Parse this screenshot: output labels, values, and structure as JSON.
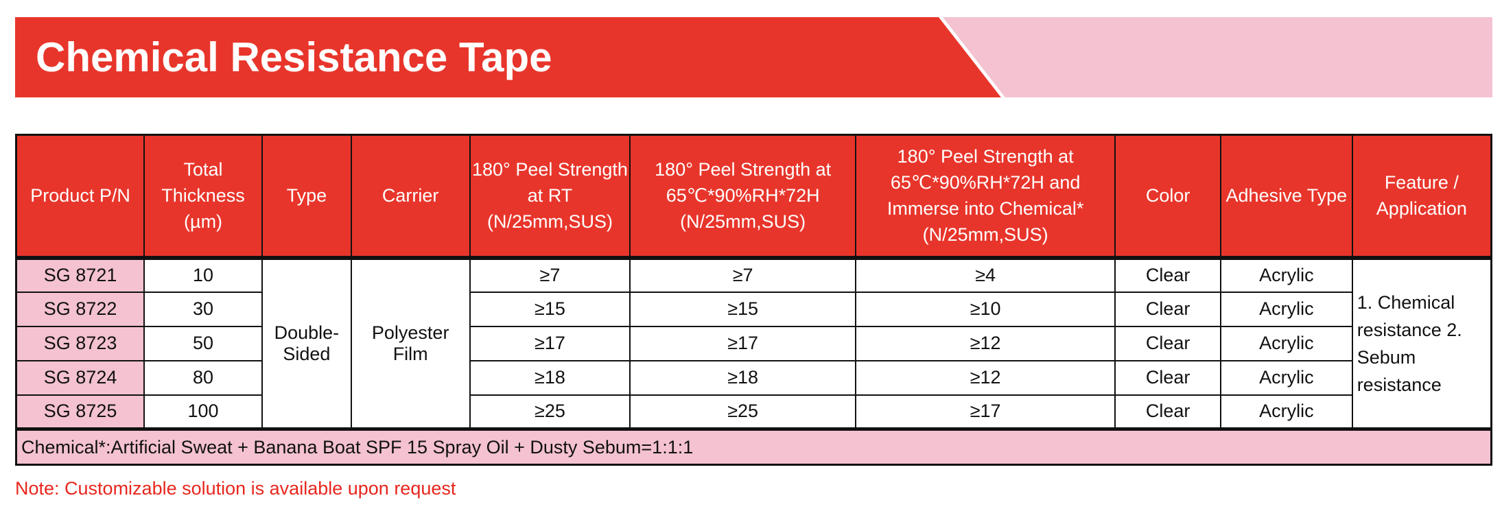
{
  "title": "Chemical Resistance Tape",
  "colors": {
    "red": "#e8352b",
    "pink": "#f4c2d0"
  },
  "headers": [
    "Product P/N",
    "Total Thickness (µm)",
    "Type",
    "Carrier",
    "180° Peel Strength at RT (N/25mm,SUS)",
    "180° Peel Strength at 65℃*90%RH*72H (N/25mm,SUS)",
    "180° Peel Strength at 65℃*90%RH*72H and Immerse into Chemical* (N/25mm,SUS)",
    "Color",
    "Adhesive Type",
    "Feature / Application"
  ],
  "type": "Double-Sided",
  "carrier": "Polyester Film",
  "feature": "1. Chemical resistance 2. Sebum resistance",
  "rows": [
    {
      "pn": "SG 8721",
      "thickness": "10",
      "peel_rt": "≥7",
      "peel_65": "≥7",
      "peel_chem": "≥4",
      "color": "Clear",
      "adhesive": "Acrylic"
    },
    {
      "pn": "SG 8722",
      "thickness": "30",
      "peel_rt": "≥15",
      "peel_65": "≥15",
      "peel_chem": "≥10",
      "color": "Clear",
      "adhesive": "Acrylic"
    },
    {
      "pn": "SG 8723",
      "thickness": "50",
      "peel_rt": "≥17",
      "peel_65": "≥17",
      "peel_chem": "≥12",
      "color": "Clear",
      "adhesive": "Acrylic"
    },
    {
      "pn": "SG 8724",
      "thickness": "80",
      "peel_rt": "≥18",
      "peel_65": "≥18",
      "peel_chem": "≥12",
      "color": "Clear",
      "adhesive": "Acrylic"
    },
    {
      "pn": "SG 8725",
      "thickness": "100",
      "peel_rt": "≥25",
      "peel_65": "≥25",
      "peel_chem": "≥17",
      "color": "Clear",
      "adhesive": "Acrylic"
    }
  ],
  "footnote": "Chemical*:Artificial Sweat + Banana Boat SPF 15 Spray Oil + Dusty Sebum=1:1:1",
  "note": "Note: Customizable solution is available upon request"
}
